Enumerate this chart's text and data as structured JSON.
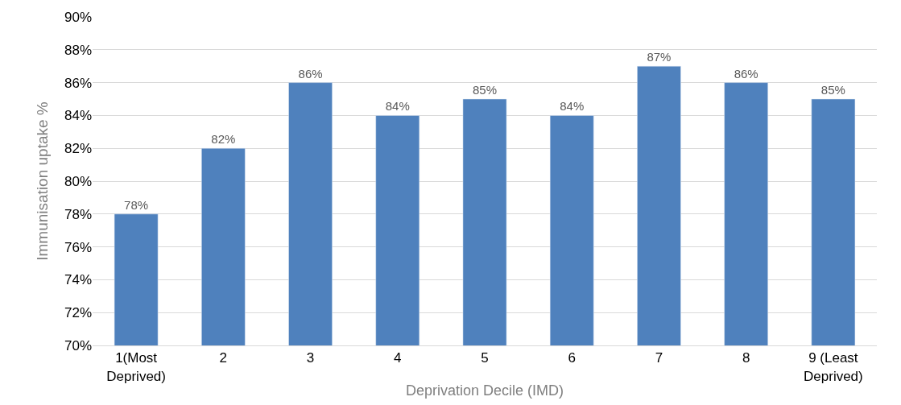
{
  "chart_data": {
    "type": "bar",
    "xlabel": "Deprivation Decile (IMD)",
    "ylabel": "Immunisation uptake %",
    "categories": [
      "1(Most\nDeprived)",
      "2",
      "3",
      "4",
      "5",
      "6",
      "7",
      "8",
      "9 (Least\nDeprived)"
    ],
    "values": [
      78,
      82,
      86,
      84,
      85,
      84,
      87,
      86,
      85
    ],
    "value_labels": [
      "78%",
      "82%",
      "86%",
      "84%",
      "85%",
      "84%",
      "87%",
      "86%",
      "85%"
    ],
    "color": "#4f81bd",
    "ylim": [
      70,
      90
    ],
    "yticks": [
      {
        "value": 70,
        "label": "70%"
      },
      {
        "value": 72,
        "label": "72%"
      },
      {
        "value": 74,
        "label": "74%"
      },
      {
        "value": 76,
        "label": "76%"
      },
      {
        "value": 78,
        "label": "78%"
      },
      {
        "value": 80,
        "label": "80%"
      },
      {
        "value": 82,
        "label": "82%"
      },
      {
        "value": 84,
        "label": "84%"
      },
      {
        "value": 86,
        "label": "86%"
      },
      {
        "value": 88,
        "label": "88%"
      },
      {
        "value": 90,
        "label": "90%"
      }
    ],
    "grid": "y",
    "legend": false
  }
}
